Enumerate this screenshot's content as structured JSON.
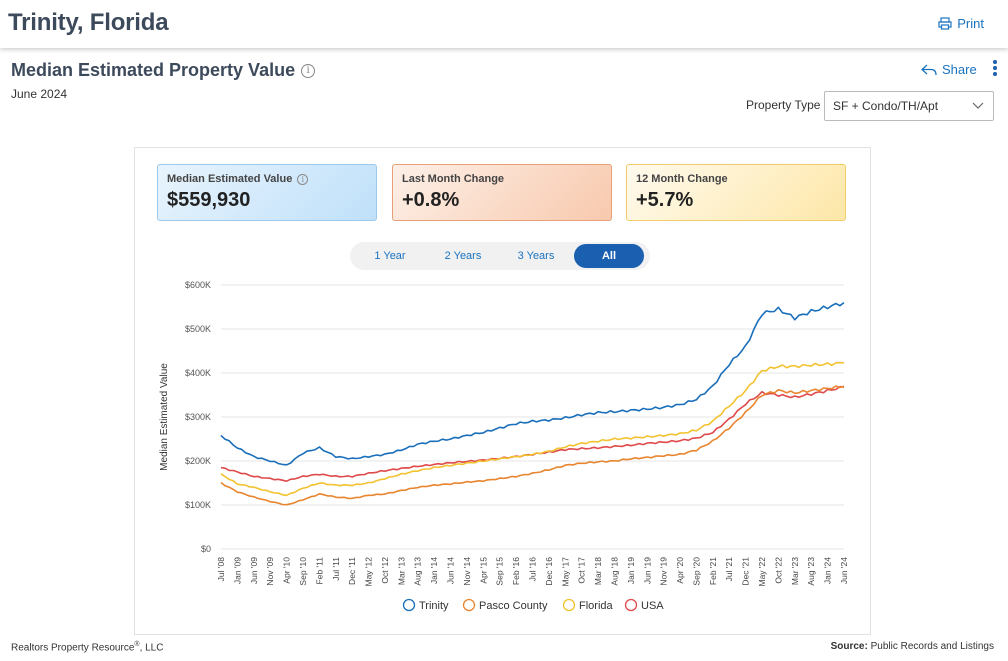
{
  "page": {
    "title": "Trinity, Florida",
    "print_label": "Print",
    "section_title": "Median Estimated Property Value",
    "date": "June 2024",
    "share_label": "Share",
    "property_type_label": "Property Type",
    "property_type_value": "SF + Condo/TH/Apt"
  },
  "stats": [
    {
      "label": "Median Estimated Value",
      "value": "$559,930"
    },
    {
      "label": "Last Month Change",
      "value": "+0.8%"
    },
    {
      "label": "12 Month Change",
      "value": "+5.7%"
    }
  ],
  "range_tabs": [
    "1 Year",
    "2 Years",
    "3 Years",
    "All"
  ],
  "active_range": "All",
  "footer": {
    "left": "Realtors Property Resource",
    "left_sup": "®",
    "left_suffix": ", LLC",
    "right_bold": "Source:",
    "right": " Public Records and Listings"
  },
  "colors": {
    "Trinity": "#1a6fba",
    "Pasco County": "#e8852f",
    "Florida": "#f2c230",
    "USA": "#df4a4a"
  },
  "chart_data": {
    "type": "line",
    "xlabel": "",
    "ylabel": "Median Estimated Value",
    "ylim": [
      0,
      600000
    ],
    "yticks": [
      "$0",
      "$100K",
      "$200K",
      "$300K",
      "$400K",
      "$500K",
      "$600K"
    ],
    "xticks": [
      "Jul '08",
      "Jan '09",
      "Jun '09",
      "Nov '09",
      "Apr '10",
      "Sep '10",
      "Feb '11",
      "Jul '11",
      "Dec '11",
      "May '12",
      "Oct '12",
      "Mar '13",
      "Aug '13",
      "Jan '14",
      "Jun '14",
      "Nov '14",
      "Apr '15",
      "Sep '15",
      "Feb '16",
      "Jul '16",
      "Dec '16",
      "May '17",
      "Oct '17",
      "Mar '18",
      "Aug '18",
      "Jan '19",
      "Jun '19",
      "Nov '19",
      "Apr '20",
      "Sep '20",
      "Feb '21",
      "Jul '21",
      "Dec '21",
      "May '22",
      "Oct '22",
      "Mar '23",
      "Aug '23",
      "Jan '24",
      "Jun '24"
    ],
    "legend_position": "bottom",
    "series": [
      {
        "name": "Trinity",
        "values": [
          258000,
          230000,
          210000,
          200000,
          190000,
          218000,
          230000,
          210000,
          205000,
          210000,
          215000,
          225000,
          238000,
          245000,
          250000,
          258000,
          265000,
          275000,
          285000,
          290000,
          293000,
          298000,
          305000,
          310000,
          312000,
          315000,
          318000,
          322000,
          328000,
          340000,
          370000,
          420000,
          460000,
          535000,
          545000,
          525000,
          540000,
          550000,
          560000
        ]
      },
      {
        "name": "Pasco County",
        "values": [
          150000,
          130000,
          118000,
          108000,
          100000,
          112000,
          125000,
          118000,
          115000,
          122000,
          125000,
          133000,
          140000,
          145000,
          148000,
          152000,
          155000,
          160000,
          165000,
          172000,
          180000,
          190000,
          195000,
          198000,
          200000,
          205000,
          208000,
          212000,
          215000,
          225000,
          245000,
          275000,
          310000,
          350000,
          360000,
          355000,
          360000,
          365000,
          370000
        ]
      },
      {
        "name": "Florida",
        "values": [
          170000,
          148000,
          140000,
          130000,
          122000,
          138000,
          150000,
          145000,
          145000,
          150000,
          160000,
          170000,
          178000,
          185000,
          190000,
          195000,
          200000,
          205000,
          210000,
          215000,
          222000,
          232000,
          240000,
          245000,
          250000,
          252000,
          255000,
          258000,
          262000,
          270000,
          290000,
          325000,
          360000,
          405000,
          415000,
          415000,
          418000,
          420000,
          423000
        ]
      },
      {
        "name": "USA",
        "values": [
          185000,
          175000,
          165000,
          160000,
          155000,
          165000,
          170000,
          165000,
          165000,
          172000,
          178000,
          183000,
          188000,
          192000,
          196000,
          199000,
          202000,
          206000,
          210000,
          215000,
          220000,
          226000,
          228000,
          230000,
          233000,
          236000,
          240000,
          243000,
          246000,
          252000,
          265000,
          295000,
          330000,
          355000,
          350000,
          345000,
          352000,
          360000,
          368000
        ]
      }
    ]
  }
}
